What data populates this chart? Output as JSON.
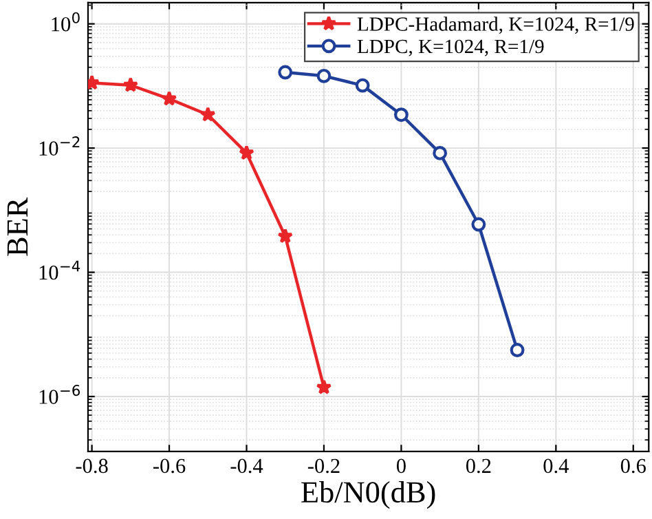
{
  "chart_data": {
    "type": "line",
    "xlabel": "Eb/N0(dB)",
    "ylabel": "BER",
    "log": "y",
    "grid": true,
    "legend": "top right",
    "xlim": [
      -0.81,
      0.64
    ],
    "xticks": [
      -0.8,
      -0.6,
      -0.4,
      -0.2,
      0,
      0.2,
      0.4,
      0.6
    ],
    "ylim": [
      1.3e-07,
      2.2
    ],
    "yticks": [
      {
        "value": 1,
        "label": "10$^{0}$"
      },
      {
        "value": 0.01,
        "label": "10$^{−2}$"
      },
      {
        "value": 0.0001,
        "label": "10$^{−4}$"
      },
      {
        "value": 1e-06,
        "label": "10$^{−6}$"
      }
    ],
    "series": [
      {
        "name": "LDPC-Hadamard, K=1024, R=1/9",
        "color": "#e8262a",
        "marker": "star",
        "x": [
          -0.8,
          -0.7,
          -0.6,
          -0.5,
          -0.4,
          -0.3,
          -0.2
        ],
        "values": [
          0.112,
          0.103,
          0.062,
          0.0344,
          0.0083,
          0.00038,
          1.4e-06
        ]
      },
      {
        "name": "LDPC, K=1024, R=1/9",
        "color": "#1f3f99",
        "marker": "circle",
        "x": [
          -0.3,
          -0.2,
          -0.1,
          0,
          0.1,
          0.2,
          0.3
        ],
        "values": [
          0.166,
          0.145,
          0.102,
          0.0344,
          0.0083,
          0.00059,
          5.6e-06
        ]
      }
    ]
  }
}
